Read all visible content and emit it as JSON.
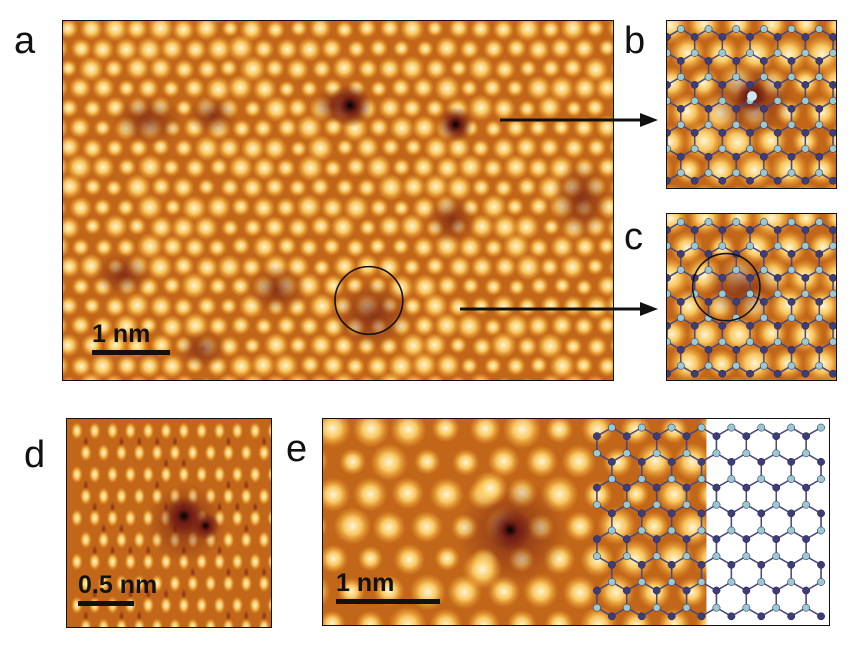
{
  "panel_labels": {
    "a": "a",
    "b": "b",
    "c": "c",
    "d": "d",
    "e": "e"
  },
  "scale_bars": {
    "a": "1 nm",
    "d": "0.5 nm",
    "e": "1 nm"
  },
  "colors": {
    "background": "#c2661a",
    "bright": "#fff6d8",
    "mid": "#f2a226",
    "dark": "#6e1a14",
    "atom_dark": "#3d3d78",
    "atom_light": "#9ac9d2"
  }
}
